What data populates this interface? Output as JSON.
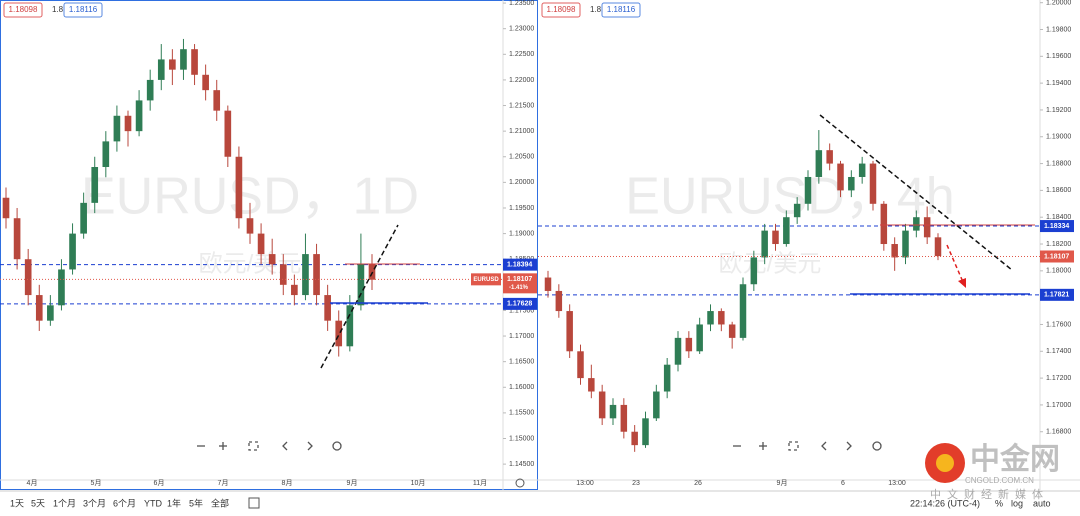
{
  "chart_data": [
    {
      "type": "candlestick",
      "watermark": "EURUSD，1D",
      "watermark_sub": "欧元/美元",
      "header": {
        "bid": "1.18098",
        "spread": "1.8",
        "ask": "1.18116"
      },
      "up_color": "#2f7d55",
      "down_color": "#b8473c",
      "ylim": [
        1.1419,
        1.2356
      ],
      "yticks": [
        {
          "value": 1.145,
          "label": "1.14500"
        },
        {
          "value": 1.15,
          "label": "1.15000"
        },
        {
          "value": 1.155,
          "label": "1.15500"
        },
        {
          "value": 1.16,
          "label": "1.16000"
        },
        {
          "value": 1.165,
          "label": "1.16500"
        },
        {
          "value": 1.17,
          "label": "1.17000"
        },
        {
          "value": 1.175,
          "label": "1.17500"
        },
        {
          "value": 1.18,
          "label": "1.18000"
        },
        {
          "value": 1.185,
          "label": "1.18500"
        },
        {
          "value": 1.19,
          "label": "1.19000"
        },
        {
          "value": 1.195,
          "label": "1.19500"
        },
        {
          "value": 1.2,
          "label": "1.20000"
        },
        {
          "value": 1.205,
          "label": "1.20500"
        },
        {
          "value": 1.21,
          "label": "1.21000"
        },
        {
          "value": 1.215,
          "label": "1.21500"
        },
        {
          "value": 1.22,
          "label": "1.22000"
        },
        {
          "value": 1.225,
          "label": "1.22500"
        },
        {
          "value": 1.23,
          "label": "1.23000"
        },
        {
          "value": 1.235,
          "label": "1.23500"
        }
      ],
      "xlabels": [
        "4月",
        "5月",
        "6月",
        "7月",
        "8月",
        "9月",
        "10月",
        "11月"
      ],
      "levels": [
        {
          "value": 1.18394,
          "color": "#1b3fd1"
        },
        {
          "value": 1.17628,
          "color": "#1b3fd1"
        }
      ],
      "last": {
        "value": 1.18107,
        "color": "#e0584a",
        "symbol": "EURUSD",
        "change": "-1.41%"
      },
      "ohlc": [
        [
          1.197,
          1.199,
          1.191,
          1.193
        ],
        [
          1.193,
          1.195,
          1.183,
          1.185
        ],
        [
          1.185,
          1.187,
          1.176,
          1.178
        ],
        [
          1.178,
          1.18,
          1.171,
          1.173
        ],
        [
          1.173,
          1.178,
          1.172,
          1.176
        ],
        [
          1.176,
          1.185,
          1.175,
          1.183
        ],
        [
          1.183,
          1.192,
          1.182,
          1.19
        ],
        [
          1.19,
          1.198,
          1.189,
          1.196
        ],
        [
          1.196,
          1.205,
          1.194,
          1.203
        ],
        [
          1.203,
          1.21,
          1.201,
          1.208
        ],
        [
          1.208,
          1.215,
          1.206,
          1.213
        ],
        [
          1.213,
          1.214,
          1.207,
          1.21
        ],
        [
          1.21,
          1.218,
          1.209,
          1.216
        ],
        [
          1.216,
          1.222,
          1.214,
          1.22
        ],
        [
          1.22,
          1.227,
          1.218,
          1.224
        ],
        [
          1.224,
          1.226,
          1.219,
          1.222
        ],
        [
          1.222,
          1.228,
          1.22,
          1.226
        ],
        [
          1.226,
          1.227,
          1.219,
          1.221
        ],
        [
          1.221,
          1.223,
          1.216,
          1.218
        ],
        [
          1.218,
          1.22,
          1.212,
          1.214
        ],
        [
          1.214,
          1.215,
          1.203,
          1.205
        ],
        [
          1.205,
          1.207,
          1.191,
          1.193
        ],
        [
          1.193,
          1.196,
          1.188,
          1.19
        ],
        [
          1.19,
          1.192,
          1.184,
          1.186
        ],
        [
          1.186,
          1.189,
          1.182,
          1.184
        ],
        [
          1.184,
          1.186,
          1.178,
          1.18
        ],
        [
          1.18,
          1.182,
          1.176,
          1.178
        ],
        [
          1.178,
          1.19,
          1.177,
          1.186
        ],
        [
          1.186,
          1.188,
          1.176,
          1.178
        ],
        [
          1.178,
          1.18,
          1.171,
          1.173
        ],
        [
          1.173,
          1.175,
          1.166,
          1.168
        ],
        [
          1.168,
          1.178,
          1.167,
          1.176
        ],
        [
          1.176,
          1.19,
          1.175,
          1.184
        ],
        [
          1.184,
          1.186,
          1.179,
          1.181
        ]
      ]
    },
    {
      "type": "candlestick",
      "watermark": "EURUSD，4h",
      "watermark_sub": "欧元/美元",
      "header": {
        "bid": "1.18098",
        "spread": "1.8",
        "ask": "1.18116"
      },
      "up_color": "#2f7d55",
      "down_color": "#b8473c",
      "ylim": [
        1.1644,
        1.2002
      ],
      "yticks": [
        {
          "value": 1.168,
          "label": "1.16800"
        },
        {
          "value": 1.17,
          "label": "1.17000"
        },
        {
          "value": 1.172,
          "label": "1.17200"
        },
        {
          "value": 1.174,
          "label": "1.17400"
        },
        {
          "value": 1.176,
          "label": "1.17600"
        },
        {
          "value": 1.178,
          "label": "1.17800"
        },
        {
          "value": 1.18,
          "label": "1.18000"
        },
        {
          "value": 1.182,
          "label": "1.18200"
        },
        {
          "value": 1.184,
          "label": "1.18400"
        },
        {
          "value": 1.186,
          "label": "1.18600"
        },
        {
          "value": 1.188,
          "label": "1.18800"
        },
        {
          "value": 1.19,
          "label": "1.19000"
        },
        {
          "value": 1.192,
          "label": "1.19200"
        },
        {
          "value": 1.194,
          "label": "1.19400"
        },
        {
          "value": 1.196,
          "label": "1.19600"
        },
        {
          "value": 1.198,
          "label": "1.19800"
        },
        {
          "value": 1.2,
          "label": "1.20000"
        }
      ],
      "xlabels": [
        "13:00",
        "23",
        "26",
        "9月",
        "6",
        "13:00"
      ],
      "levels": [
        {
          "value": 1.18334,
          "color": "#1b3fd1"
        },
        {
          "value": 1.17821,
          "color": "#1b3fd1"
        }
      ],
      "last": {
        "value": 1.18107,
        "color": "#e0584a"
      },
      "ohlc": [
        [
          1.1795,
          1.18,
          1.178,
          1.1785
        ],
        [
          1.1785,
          1.179,
          1.1765,
          1.177
        ],
        [
          1.177,
          1.1775,
          1.1735,
          1.174
        ],
        [
          1.174,
          1.1745,
          1.1715,
          1.172
        ],
        [
          1.172,
          1.173,
          1.1705,
          1.171
        ],
        [
          1.171,
          1.1715,
          1.1685,
          1.169
        ],
        [
          1.169,
          1.1705,
          1.1685,
          1.17
        ],
        [
          1.17,
          1.1705,
          1.1675,
          1.168
        ],
        [
          1.168,
          1.1685,
          1.1665,
          1.167
        ],
        [
          1.167,
          1.1695,
          1.1668,
          1.169
        ],
        [
          1.169,
          1.1715,
          1.1688,
          1.171
        ],
        [
          1.171,
          1.1735,
          1.1705,
          1.173
        ],
        [
          1.173,
          1.1755,
          1.1725,
          1.175
        ],
        [
          1.175,
          1.1755,
          1.1735,
          1.174
        ],
        [
          1.174,
          1.1765,
          1.1738,
          1.176
        ],
        [
          1.176,
          1.1775,
          1.1755,
          1.177
        ],
        [
          1.177,
          1.1772,
          1.1755,
          1.176
        ],
        [
          1.176,
          1.1762,
          1.1742,
          1.175
        ],
        [
          1.175,
          1.1795,
          1.1748,
          1.179
        ],
        [
          1.179,
          1.1815,
          1.1785,
          1.181
        ],
        [
          1.181,
          1.1835,
          1.1805,
          1.183
        ],
        [
          1.183,
          1.1835,
          1.1815,
          1.182
        ],
        [
          1.182,
          1.1845,
          1.1818,
          1.184
        ],
        [
          1.184,
          1.1855,
          1.1835,
          1.185
        ],
        [
          1.185,
          1.1875,
          1.1845,
          1.187
        ],
        [
          1.187,
          1.1905,
          1.1865,
          1.189
        ],
        [
          1.189,
          1.1895,
          1.1875,
          1.188
        ],
        [
          1.188,
          1.1882,
          1.1855,
          1.186
        ],
        [
          1.186,
          1.1875,
          1.1855,
          1.187
        ],
        [
          1.187,
          1.1885,
          1.1865,
          1.188
        ],
        [
          1.188,
          1.1882,
          1.1845,
          1.185
        ],
        [
          1.185,
          1.1852,
          1.1815,
          1.182
        ],
        [
          1.182,
          1.1825,
          1.18,
          1.181
        ],
        [
          1.181,
          1.1835,
          1.1805,
          1.183
        ],
        [
          1.183,
          1.1845,
          1.1825,
          1.184
        ],
        [
          1.184,
          1.1848,
          1.182,
          1.1825
        ],
        [
          1.1825,
          1.1828,
          1.1808,
          1.1811
        ]
      ]
    }
  ],
  "toolbar": {
    "ranges": [
      "1天",
      "5天",
      "1个月",
      "3个月",
      "6个月",
      "YTD",
      "1年",
      "5年",
      "全部"
    ],
    "clock": "22:14:26 (UTC-4)",
    "percent": "%",
    "log": "log",
    "auto": "auto"
  },
  "logo": {
    "name": "中金网",
    "site": "CNGOLD.COM.CN",
    "slogan": "中文财经新媒体"
  }
}
